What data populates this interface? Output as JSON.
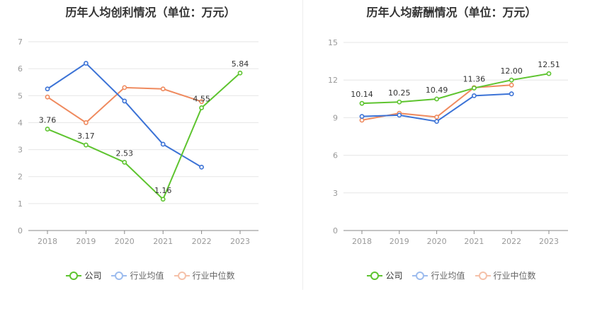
{
  "colors": {
    "company": "#5ec42f",
    "avg": "#3c73d6",
    "median": "#ef8a5e",
    "grid": "#e6e6e6",
    "axis": "#999999",
    "label": "#333333"
  },
  "legend": {
    "company": "公司",
    "avg": "行业均值",
    "median": "行业中位数"
  },
  "chart_data": [
    {
      "type": "line",
      "title": "历年人均创利情况（单位：万元）",
      "categories": [
        "2018",
        "2019",
        "2020",
        "2021",
        "2022",
        "2023"
      ],
      "ylim": [
        0,
        7
      ],
      "yticks": [
        0,
        1,
        2,
        3,
        4,
        5,
        6,
        7
      ],
      "grid": true,
      "legend_position": "bottom",
      "series": [
        {
          "name": "公司",
          "values": [
            3.76,
            3.17,
            2.53,
            1.16,
            4.55,
            5.84
          ],
          "labels": [
            "3.76",
            "3.17",
            "2.53",
            "1.16",
            "4.55",
            "5.84"
          ]
        },
        {
          "name": "行业均值",
          "values": [
            5.25,
            6.2,
            4.8,
            3.2,
            2.35,
            null
          ]
        },
        {
          "name": "行业中位数",
          "values": [
            4.95,
            4.0,
            5.3,
            5.25,
            4.78,
            null
          ]
        }
      ]
    },
    {
      "type": "line",
      "title": "历年人均薪酬情况（单位：万元）",
      "categories": [
        "2018",
        "2019",
        "2020",
        "2021",
        "2022",
        "2023"
      ],
      "ylim": [
        0,
        15
      ],
      "yticks": [
        0,
        3,
        6,
        9,
        12,
        15
      ],
      "grid": true,
      "legend_position": "bottom",
      "series": [
        {
          "name": "公司",
          "values": [
            10.14,
            10.25,
            10.49,
            11.36,
            12.0,
            12.51
          ],
          "labels": [
            "10.14",
            "10.25",
            "10.49",
            "11.36",
            "12.00",
            "12.51"
          ]
        },
        {
          "name": "行业均值",
          "values": [
            9.1,
            9.2,
            8.7,
            10.75,
            10.9,
            null
          ]
        },
        {
          "name": "行业中位数",
          "values": [
            8.8,
            9.35,
            9.05,
            11.4,
            11.6,
            null
          ]
        }
      ]
    }
  ]
}
